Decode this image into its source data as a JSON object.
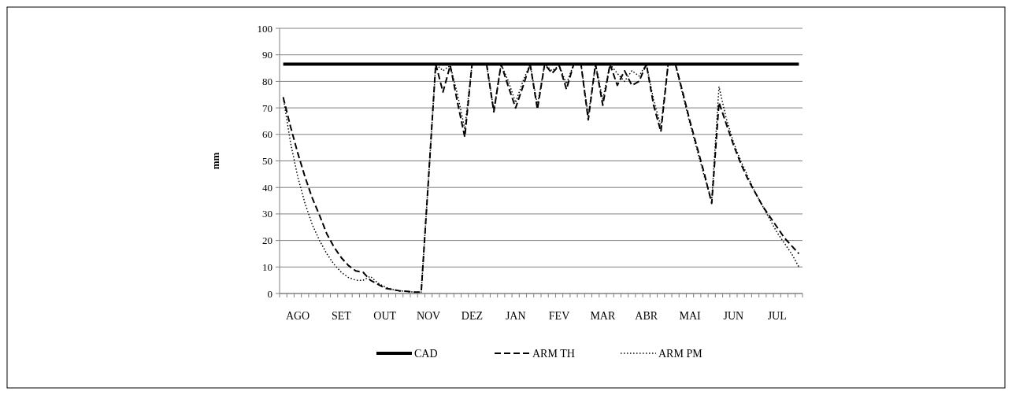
{
  "chart_data": {
    "type": "line",
    "ylabel": "mm",
    "categories": [
      null,
      null,
      "AGO",
      null,
      null,
      null,
      null,
      null,
      "SET",
      null,
      null,
      null,
      null,
      null,
      "OUT",
      null,
      null,
      null,
      null,
      null,
      "NOV",
      null,
      null,
      null,
      null,
      null,
      "DEZ",
      null,
      null,
      null,
      null,
      null,
      "JAN",
      null,
      null,
      null,
      null,
      null,
      "FEV",
      null,
      null,
      null,
      null,
      null,
      "MAR",
      null,
      null,
      null,
      null,
      null,
      "ABR",
      null,
      null,
      null,
      null,
      null,
      "MAI",
      null,
      null,
      null,
      null,
      null,
      "JUN",
      null,
      null,
      null,
      null,
      null,
      "JUL",
      null,
      null,
      null
    ],
    "series": [
      {
        "name": "CAD",
        "color": "#000000",
        "line_style": "solid",
        "values": [
          86.5,
          86.5,
          86.5,
          86.5,
          86.5,
          86.5,
          86.5,
          86.5,
          86.5,
          86.5,
          86.5,
          86.5,
          86.5,
          86.5,
          86.5,
          86.5,
          86.5,
          86.5,
          86.5,
          86.5,
          86.5,
          86.5,
          86.5,
          86.5,
          86.5,
          86.5,
          86.5,
          86.5,
          86.5,
          86.5,
          86.5,
          86.5,
          86.5,
          86.5,
          86.5,
          86.5,
          86.5,
          86.5,
          86.5,
          86.5,
          86.5,
          86.5,
          86.5,
          86.5,
          86.5,
          86.5,
          86.5,
          86.5,
          86.5,
          86.5,
          86.5,
          86.5,
          86.5,
          86.5,
          86.5,
          86.5,
          86.5,
          86.5,
          86.5,
          86.5,
          86.5,
          86.5,
          86.5,
          86.5,
          86.5,
          86.5,
          86.5,
          86.5,
          86.5,
          86.5,
          86.5,
          86.5
        ]
      },
      {
        "name": "ARM TH",
        "color": "#000000",
        "line_style": "dashed",
        "values": [
          74,
          63,
          53,
          44,
          36,
          29.5,
          22.5,
          17.5,
          13.5,
          10.5,
          8.5,
          8,
          5,
          3.5,
          2,
          1.5,
          1,
          0.8,
          0.5,
          0.5,
          43,
          86.5,
          76,
          86,
          72,
          59,
          86.5,
          86.5,
          86.5,
          68.5,
          86.5,
          78,
          70,
          78,
          86.5,
          69.5,
          86.5,
          83,
          86,
          77,
          86.5,
          86.5,
          65.5,
          86.5,
          71,
          86.5,
          78.5,
          84,
          78.5,
          80,
          86.5,
          71,
          61,
          86.5,
          86.5,
          76,
          65,
          55,
          45,
          34,
          72,
          64,
          56,
          49,
          43,
          38,
          33,
          29,
          25,
          21,
          18,
          15
        ]
      },
      {
        "name": "ARM PM",
        "color": "#000000",
        "line_style": "dotted",
        "values": [
          74,
          57,
          44,
          34,
          26,
          20,
          15,
          11,
          8,
          6,
          5,
          5,
          6.5,
          4,
          2.5,
          1.5,
          1,
          0.8,
          0.5,
          0.5,
          43,
          86.5,
          84,
          86,
          75,
          62,
          86.5,
          86.5,
          86.5,
          69,
          86.5,
          80,
          72,
          80,
          86.5,
          71,
          86.5,
          84,
          86,
          79,
          86.5,
          86.5,
          67,
          86.5,
          73,
          86.5,
          83,
          80,
          84,
          82,
          86.5,
          73,
          63,
          86.5,
          86.5,
          75,
          64,
          54,
          44,
          35,
          78,
          66,
          57,
          50,
          44,
          38,
          33,
          28,
          23,
          19,
          15,
          10
        ]
      }
    ],
    "ylim": [
      0,
      100
    ],
    "yticks": [
      0,
      10,
      20,
      30,
      40,
      50,
      60,
      70,
      80,
      90,
      100
    ],
    "grid": "y",
    "legend": "bottom",
    "marker": "none"
  }
}
